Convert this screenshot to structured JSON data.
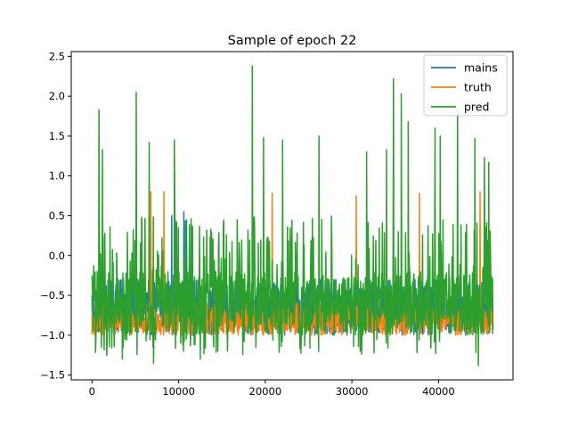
{
  "chart_data": {
    "type": "line",
    "title": "Sample of epoch 22",
    "xlabel": "",
    "ylabel": "",
    "xlim": [
      -2400,
      48600
    ],
    "ylim": [
      -1.56,
      2.56
    ],
    "xticks": [
      0,
      10000,
      20000,
      30000,
      40000
    ],
    "xtick_labels": [
      "0",
      "10000",
      "20000",
      "30000",
      "40000"
    ],
    "yticks": [
      -1.5,
      -1.0,
      -0.5,
      0.0,
      0.5,
      1.0,
      1.5,
      2.0,
      2.5
    ],
    "ytick_labels": [
      "−1.5",
      "−1.0",
      "−0.5",
      "0.0",
      "0.5",
      "1.0",
      "1.5",
      "2.0",
      "2.5"
    ],
    "grid": false,
    "legend_position": "top-right",
    "n_samples": 46300,
    "series": [
      {
        "name": "mains",
        "color": "#1f77b4",
        "baseline_range": [
          -1.0,
          -0.3
        ],
        "notable_points": [
          {
            "x": 9200,
            "y": 0.5
          },
          {
            "x": 9600,
            "y": 0.45
          },
          {
            "x": 10600,
            "y": 0.55
          },
          {
            "x": 10900,
            "y": 0.45
          }
        ]
      },
      {
        "name": "truth",
        "color": "#ff7f0e",
        "baseline_range": [
          -1.0,
          -0.6
        ],
        "notable_points": [
          {
            "x": 6800,
            "y": 0.8
          },
          {
            "x": 8300,
            "y": 0.8
          },
          {
            "x": 20800,
            "y": 0.78
          },
          {
            "x": 30500,
            "y": 0.75
          },
          {
            "x": 37800,
            "y": 0.78
          },
          {
            "x": 44800,
            "y": 0.8
          }
        ]
      },
      {
        "name": "pred",
        "color": "#2ca02c",
        "baseline_range": [
          -1.0,
          -0.2
        ],
        "notable_points": [
          {
            "x": 0,
            "y": -0.25
          },
          {
            "x": 800,
            "y": 1.83
          },
          {
            "x": 1200,
            "y": 1.33
          },
          {
            "x": 1700,
            "y": -1.25
          },
          {
            "x": 3500,
            "y": -1.3
          },
          {
            "x": 5100,
            "y": 2.05
          },
          {
            "x": 6600,
            "y": 1.42
          },
          {
            "x": 7100,
            "y": -1.35
          },
          {
            "x": 9500,
            "y": 1.45
          },
          {
            "x": 12500,
            "y": -1.3
          },
          {
            "x": 18500,
            "y": 2.38
          },
          {
            "x": 19800,
            "y": 1.48
          },
          {
            "x": 22000,
            "y": 1.45
          },
          {
            "x": 26200,
            "y": 1.5
          },
          {
            "x": 31700,
            "y": 1.3
          },
          {
            "x": 34000,
            "y": 1.33
          },
          {
            "x": 34800,
            "y": 2.22
          },
          {
            "x": 35700,
            "y": 2.03
          },
          {
            "x": 36500,
            "y": 1.68
          },
          {
            "x": 39600,
            "y": 1.6
          },
          {
            "x": 40200,
            "y": 1.5
          },
          {
            "x": 42200,
            "y": 1.83
          },
          {
            "x": 44200,
            "y": 1.47
          },
          {
            "x": 44600,
            "y": -1.38
          },
          {
            "x": 45300,
            "y": 1.23
          },
          {
            "x": 45800,
            "y": 1.17
          },
          {
            "x": 46300,
            "y": -0.6
          }
        ]
      }
    ]
  }
}
